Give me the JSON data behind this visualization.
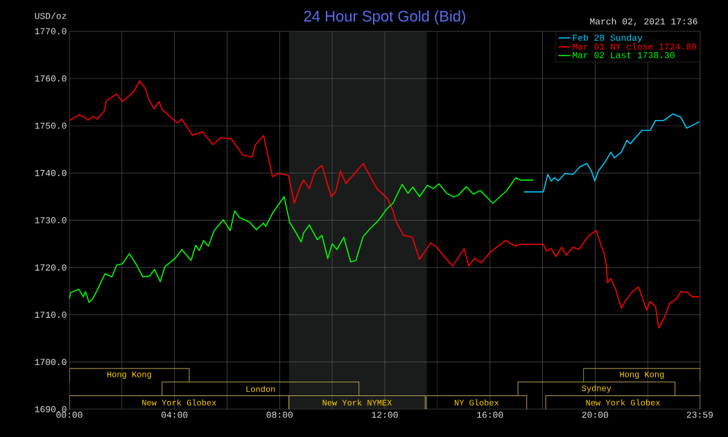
{
  "chart_data": {
    "type": "line",
    "title": "24 Hour Spot Gold (Bid)",
    "subtitle": "March 02, 2021 17:36",
    "ylabel": "USD/oz",
    "xlim": [
      0,
      24
    ],
    "ylim": [
      1690,
      1770
    ],
    "xticks": [
      {
        "value": 0,
        "label": "00:00"
      },
      {
        "value": 2,
        "label": null
      },
      {
        "value": 4,
        "label": "04:00"
      },
      {
        "value": 6,
        "label": null
      },
      {
        "value": 8,
        "label": "08:00"
      },
      {
        "value": 10,
        "label": null
      },
      {
        "value": 12,
        "label": "12:00"
      },
      {
        "value": 14,
        "label": null
      },
      {
        "value": 16,
        "label": "16:00"
      },
      {
        "value": 18,
        "label": null
      },
      {
        "value": 20,
        "label": "20:00"
      },
      {
        "value": 22,
        "label": null
      },
      {
        "value": 23.9833,
        "label": "23:59"
      }
    ],
    "yticks": [
      {
        "value": 1690,
        "label": "1690.0"
      },
      {
        "value": 1700,
        "label": "1700.0"
      },
      {
        "value": 1710,
        "label": "1710.0"
      },
      {
        "value": 1720,
        "label": "1720.0"
      },
      {
        "value": 1730,
        "label": "1730.0"
      },
      {
        "value": 1740,
        "label": "1740.0"
      },
      {
        "value": 1750,
        "label": "1750.0"
      },
      {
        "value": 1760,
        "label": "1760.0"
      },
      {
        "value": 1770,
        "label": "1770.0"
      }
    ],
    "grid": true,
    "legend": "top right",
    "marker": "none",
    "line_style": "solid",
    "bands": [
      {
        "axis": "x",
        "from": 8.35,
        "to": 13.6,
        "color": "#1a1c1c"
      }
    ],
    "annotations": [
      "Hong Kong",
      "Hong Kong",
      "London",
      "Sydney",
      "New York Globex",
      "New York NYMEX",
      "NY Globex",
      "New York Globex"
    ],
    "series": [
      {
        "name": "Feb 28 Sunday",
        "color": "#00ccff",
        "x": [
          17.29,
          18.03,
          18.2,
          18.33,
          18.46,
          18.59,
          18.86,
          19.16,
          19.42,
          19.69,
          19.86,
          19.99,
          20.12,
          20.38,
          20.6,
          20.73,
          21.0,
          21.21,
          21.34,
          21.78,
          22.09,
          22.3,
          22.61,
          22.96,
          23.26,
          23.48,
          23.74,
          23.96
        ],
        "values": [
          1736.0,
          1736.0,
          1739.7,
          1738.3,
          1739.0,
          1738.3,
          1739.9,
          1739.7,
          1741.3,
          1742.0,
          1740.4,
          1738.3,
          1740.4,
          1742.3,
          1744.4,
          1743.2,
          1744.4,
          1746.9,
          1746.2,
          1749.0,
          1749.0,
          1751.1,
          1751.1,
          1752.5,
          1751.8,
          1749.5,
          1750.2,
          1750.8
        ]
      },
      {
        "name": "Mar 01 NY close 1724.80",
        "color": "#ff0000",
        "x": [
          0,
          0.36,
          0.58,
          0.71,
          0.92,
          1.06,
          1.32,
          1.41,
          1.8,
          2.02,
          2.45,
          2.67,
          2.89,
          3.02,
          3.22,
          3.41,
          3.54,
          3.85,
          4.11,
          4.28,
          4.68,
          5.07,
          5.46,
          5.77,
          6.16,
          6.6,
          6.95,
          7.08,
          7.39,
          7.73,
          7.95,
          8.34,
          8.56,
          8.78,
          8.91,
          9.13,
          9.35,
          9.61,
          9.96,
          10.13,
          10.31,
          10.52,
          11.18,
          11.7,
          12.1,
          12.31,
          12.44,
          12.71,
          13.05,
          13.32,
          13.75,
          13.97,
          14.28,
          14.58,
          15.02,
          15.19,
          15.41,
          15.67,
          16.02,
          16.59,
          16.98,
          17.11,
          18.03,
          18.16,
          18.33,
          18.51,
          18.73,
          18.9,
          19.16,
          19.38,
          19.77,
          20.04,
          20.21,
          20.34,
          20.43,
          20.47,
          20.6,
          20.78,
          21.0,
          21.17,
          21.39,
          21.65,
          21.96,
          22.09,
          22.3,
          22.42,
          22.65,
          22.83,
          23.09,
          23.26,
          23.53,
          23.7,
          23.96
        ],
        "values": [
          1751.1,
          1752.3,
          1751.8,
          1751.2,
          1752.0,
          1751.4,
          1753.0,
          1755.3,
          1756.7,
          1755.1,
          1757.2,
          1759.5,
          1757.9,
          1755.6,
          1753.6,
          1755.1,
          1753.4,
          1751.8,
          1750.6,
          1751.4,
          1748.0,
          1748.7,
          1746.0,
          1747.5,
          1747.2,
          1743.8,
          1743.4,
          1746.0,
          1747.9,
          1739.2,
          1739.9,
          1739.5,
          1733.6,
          1737.1,
          1738.5,
          1736.7,
          1740.4,
          1741.6,
          1735.0,
          1736.0,
          1740.4,
          1737.8,
          1742.0,
          1736.7,
          1734.6,
          1732.0,
          1729.6,
          1726.8,
          1726.4,
          1721.7,
          1725.2,
          1724.3,
          1722.2,
          1720.3,
          1724.0,
          1720.3,
          1721.9,
          1721.0,
          1723.3,
          1725.7,
          1724.5,
          1724.9,
          1724.9,
          1723.5,
          1724.0,
          1722.3,
          1724.3,
          1722.6,
          1724.3,
          1723.8,
          1726.8,
          1727.8,
          1725.0,
          1723.1,
          1720.3,
          1716.8,
          1717.7,
          1715.4,
          1711.4,
          1713.1,
          1714.7,
          1715.9,
          1711.0,
          1712.8,
          1711.7,
          1707.2,
          1709.6,
          1712.4,
          1713.3,
          1714.9,
          1714.7,
          1713.8,
          1713.8
        ]
      },
      {
        "name": "Mar 02 Last 1738.30",
        "color": "#00ff00",
        "x": [
          0,
          0.05,
          0.36,
          0.53,
          0.62,
          0.75,
          0.88,
          1.06,
          1.36,
          1.62,
          1.8,
          2.02,
          2.28,
          2.49,
          2.8,
          3.06,
          3.24,
          3.46,
          3.63,
          4.02,
          4.28,
          4.63,
          4.81,
          4.94,
          5.11,
          5.29,
          5.51,
          5.86,
          6.12,
          6.29,
          6.47,
          6.86,
          7.12,
          7.38,
          7.47,
          7.73,
          8.17,
          8.38,
          8.65,
          8.82,
          8.91,
          9.13,
          9.43,
          9.61,
          9.83,
          10.0,
          10.18,
          10.44,
          10.7,
          10.9,
          11.18,
          11.44,
          11.75,
          12.09,
          12.31,
          12.66,
          12.88,
          13.07,
          13.32,
          13.62,
          13.84,
          14.06,
          14.36,
          14.62,
          14.8,
          15.1,
          15.37,
          15.63,
          16.11,
          16.63,
          16.98,
          17.16,
          17.66
        ],
        "values": [
          1713.3,
          1714.7,
          1715.4,
          1713.8,
          1714.9,
          1712.6,
          1713.3,
          1715.2,
          1718.7,
          1718.0,
          1720.5,
          1720.8,
          1722.9,
          1721.2,
          1718.0,
          1718.2,
          1719.6,
          1717.0,
          1720.1,
          1721.9,
          1723.8,
          1721.5,
          1724.7,
          1723.6,
          1725.7,
          1724.5,
          1727.8,
          1730.1,
          1727.8,
          1732.0,
          1730.6,
          1729.6,
          1728.0,
          1729.4,
          1728.7,
          1731.5,
          1735.0,
          1729.6,
          1727.1,
          1725.4,
          1727.3,
          1729.0,
          1725.9,
          1726.8,
          1721.9,
          1725.0,
          1723.8,
          1726.4,
          1721.2,
          1721.5,
          1726.6,
          1728.2,
          1729.9,
          1732.5,
          1733.6,
          1737.6,
          1735.7,
          1737.0,
          1735.0,
          1737.4,
          1736.7,
          1737.7,
          1735.7,
          1734.9,
          1735.3,
          1737.1,
          1735.5,
          1736.3,
          1733.6,
          1736.2,
          1739.0,
          1738.5,
          1738.5
        ]
      }
    ]
  }
}
